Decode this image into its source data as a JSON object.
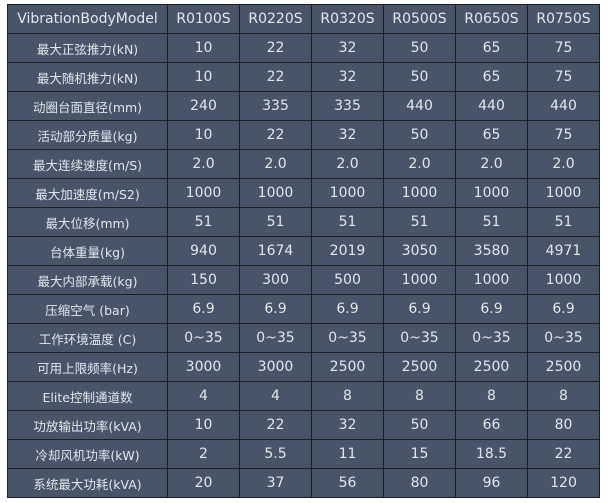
{
  "header": [
    "VibrationBodyModel",
    "R0100S",
    "R0220S",
    "R0320S",
    "R0500S",
    "R0650S",
    "R0750S"
  ],
  "rows": [
    {
      "label": "最大正弦推力(kN)",
      "values": [
        "10",
        "22",
        "32",
        "50",
        "65",
        "75"
      ]
    },
    {
      "label": "最大随机推力(kN)",
      "values": [
        "10",
        "22",
        "32",
        "50",
        "65",
        "75"
      ]
    },
    {
      "label": "动圈台面直径(mm)",
      "values": [
        "240",
        "335",
        "335",
        "440",
        "440",
        "440"
      ]
    },
    {
      "label": "活动部分质量(kg)",
      "values": [
        "10",
        "22",
        "32",
        "50",
        "65",
        "75"
      ]
    },
    {
      "label": "最大连续速度(m/S)",
      "values": [
        "2.0",
        "2.0",
        "2.0",
        "2.0",
        "2.0",
        "2.0"
      ]
    },
    {
      "label": "最大加速度(m/S2)",
      "values": [
        "1000",
        "1000",
        "1000",
        "1000",
        "1000",
        "1000"
      ]
    },
    {
      "label": "最大位移(mm)",
      "values": [
        "51",
        "51",
        "51",
        "51",
        "51",
        "51"
      ]
    },
    {
      "label": "台体重量(kg)",
      "values": [
        "940",
        "1674",
        "2019",
        "3050",
        "3580",
        "4971"
      ]
    },
    {
      "label": "最大内部承载(kg)",
      "values": [
        "150",
        "300",
        "500",
        "1000",
        "1000",
        "1000"
      ]
    },
    {
      "label": "压缩空气 (bar)",
      "values": [
        "6.9",
        "6.9",
        "6.9",
        "6.9",
        "6.9",
        "6.9"
      ]
    },
    {
      "label": "工作环境温度 (C)",
      "values": [
        "0~35",
        "0~35",
        "0~35",
        "0~35",
        "0~35",
        "0~35"
      ]
    },
    {
      "label": "可用上限频率(Hz)",
      "values": [
        "3000",
        "3000",
        "2500",
        "2500",
        "2500",
        "2500"
      ]
    },
    {
      "label": "Elite控制通道数",
      "values": [
        "4",
        "4",
        "8",
        "8",
        "8",
        "8"
      ]
    },
    {
      "label": "功放输出功率(kVA)",
      "values": [
        "10",
        "22",
        "32",
        "50",
        "66",
        "80"
      ]
    },
    {
      "label": "冷却风机功率(kW)",
      "values": [
        "2",
        "5.5",
        "11",
        "15",
        "18.5",
        "22"
      ]
    },
    {
      "label": "系统最大功耗(kVA)",
      "values": [
        "20",
        "37",
        "56",
        "80",
        "96",
        "120"
      ]
    }
  ]
}
